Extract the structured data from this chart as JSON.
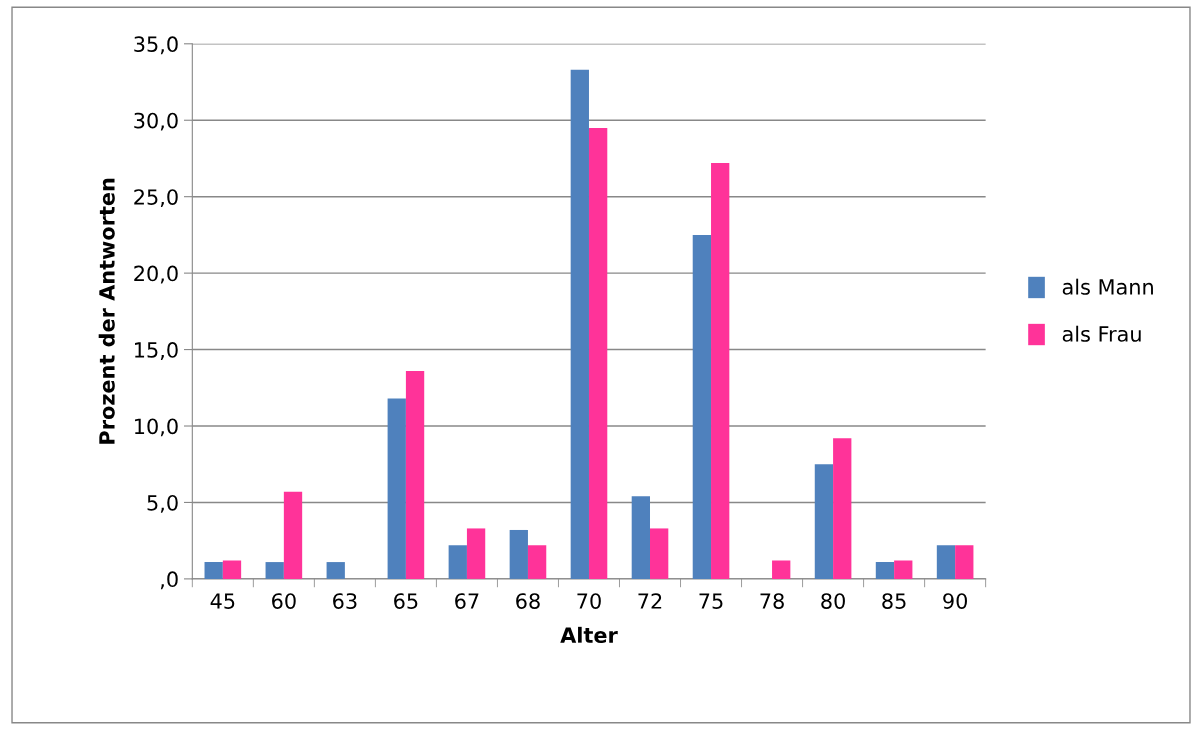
{
  "chart_data": {
    "type": "bar",
    "xlabel": "Alter",
    "ylabel": "Prozent der Antworten",
    "categories": [
      "45",
      "60",
      "63",
      "65",
      "67",
      "68",
      "70",
      "72",
      "75",
      "78",
      "80",
      "85",
      "90"
    ],
    "series": [
      {
        "name": "als Mann",
        "color": "#4f81bd",
        "values": [
          1.1,
          1.1,
          1.1,
          11.8,
          2.2,
          3.2,
          33.3,
          5.4,
          22.5,
          0,
          7.5,
          1.1,
          2.2
        ]
      },
      {
        "name": "als Frau",
        "color": "#ff3399",
        "values": [
          1.2,
          5.7,
          0,
          13.6,
          3.3,
          2.2,
          29.5,
          3.3,
          27.2,
          1.2,
          9.2,
          1.2,
          2.2
        ]
      }
    ],
    "ylim": [
      0,
      35
    ],
    "yticks": [
      {
        "value": 0,
        "label": ",0"
      },
      {
        "value": 5,
        "label": "5,0"
      },
      {
        "value": 10,
        "label": "10,0"
      },
      {
        "value": 15,
        "label": "15,0"
      },
      {
        "value": 20,
        "label": "20,0"
      },
      {
        "value": 25,
        "label": "25,0"
      },
      {
        "value": 30,
        "label": "30,0"
      },
      {
        "value": 35,
        "label": "35,0"
      }
    ],
    "grid": "y",
    "legend": "right"
  }
}
